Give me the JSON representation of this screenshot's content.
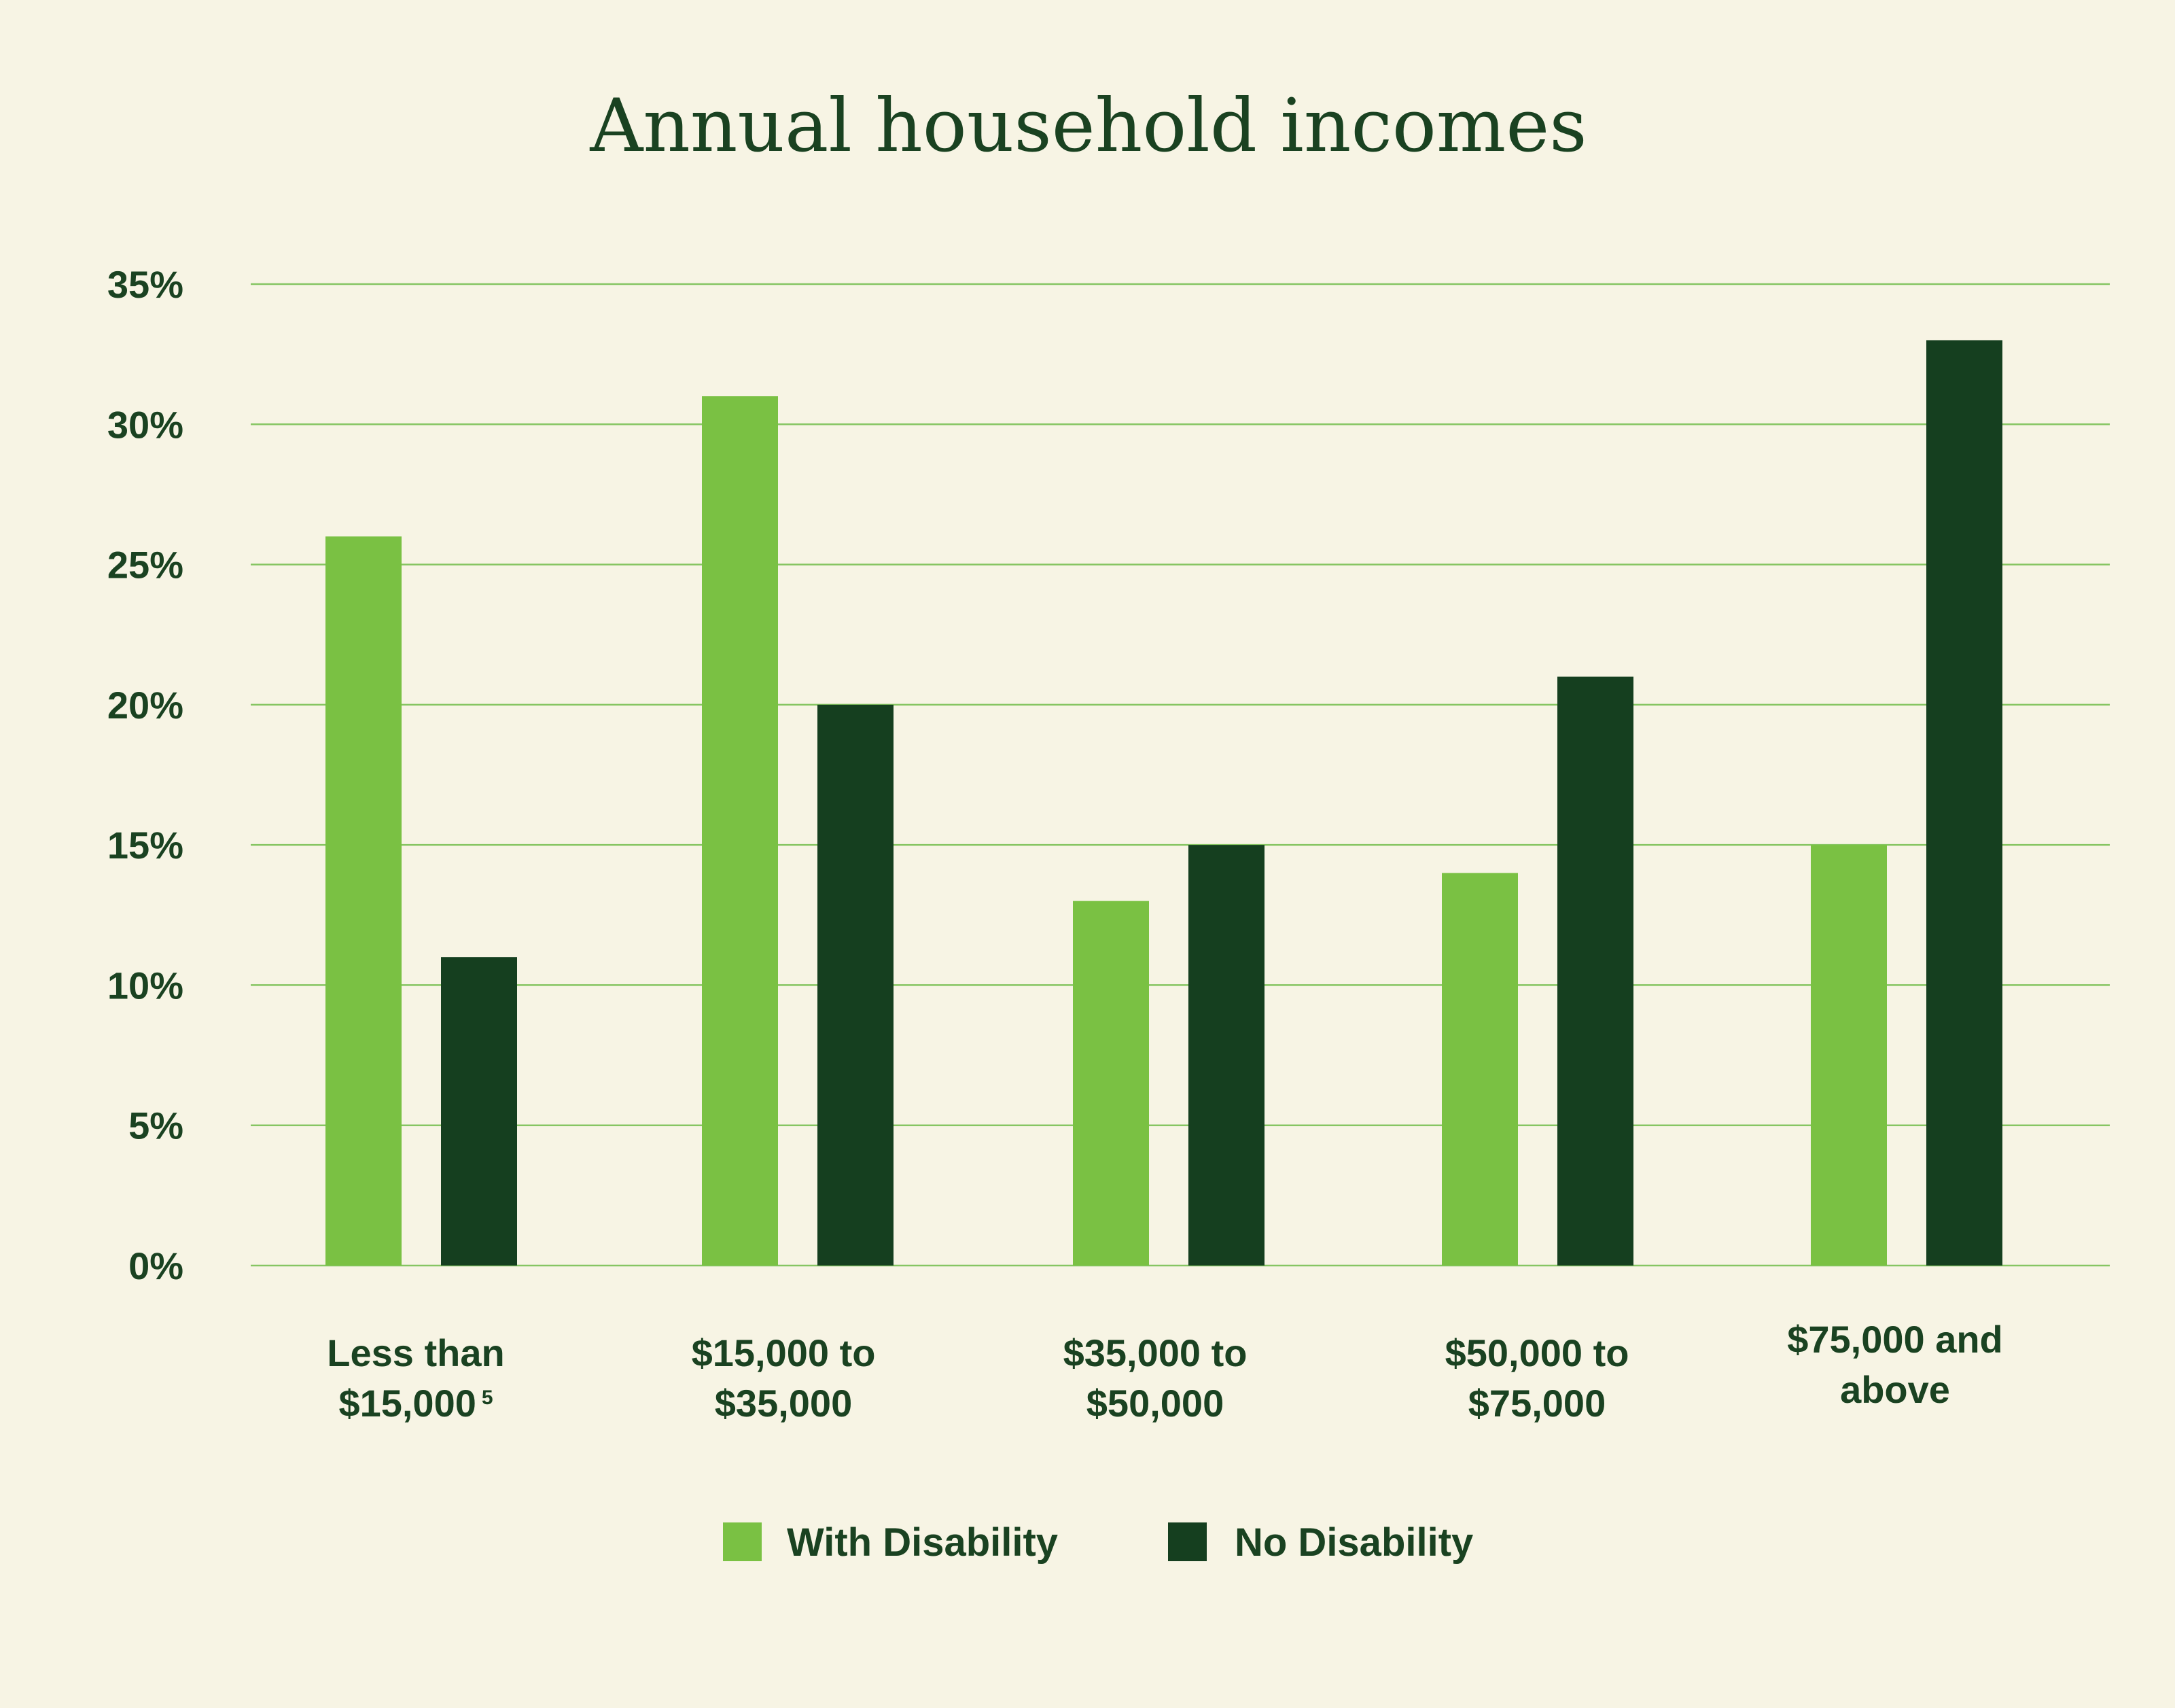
{
  "chart_data": {
    "type": "bar",
    "title": "Annual household incomes",
    "xlabel": "",
    "ylabel": "",
    "ylim": [
      0,
      35
    ],
    "yticks": [
      0,
      5,
      10,
      15,
      20,
      25,
      30,
      35
    ],
    "ytick_labels": [
      "0%",
      "5%",
      "10%",
      "15%",
      "20%",
      "25%",
      "30%",
      "35%"
    ],
    "grid": true,
    "categories": [
      {
        "lines": [
          "Less than",
          "$15,000"
        ],
        "footnote": "5"
      },
      {
        "lines": [
          "$15,000 to",
          "$35,000"
        ]
      },
      {
        "lines": [
          "$35,000 to",
          "$50,000"
        ]
      },
      {
        "lines": [
          "$50,000 to",
          "$75,000"
        ]
      },
      {
        "lines": [
          "$75,000 and",
          "above"
        ]
      }
    ],
    "series": [
      {
        "name": "With Disability",
        "color": "#7ac143",
        "values": [
          26,
          31,
          13,
          14,
          15
        ]
      },
      {
        "name": "No Disability",
        "color": "#153f1f",
        "values": [
          11,
          20,
          15,
          21,
          33
        ]
      }
    ],
    "legend_position": "bottom-center"
  }
}
